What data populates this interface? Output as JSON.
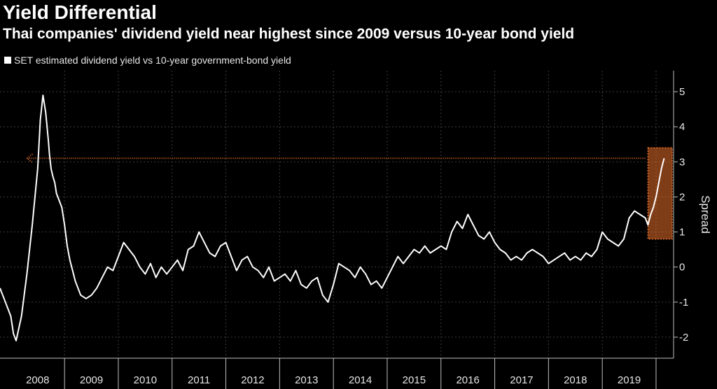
{
  "header": {
    "title": "Yield Differential",
    "subtitle": "Thai companies' dividend yield near highest since 2009 versus 10-year bond yield"
  },
  "chart_data": {
    "type": "line",
    "ylabel": "Spread",
    "ylim": [
      -2.6,
      5.6
    ],
    "xlim": [
      2007.8,
      2020.3
    ],
    "yticks": [
      -2,
      -1,
      0,
      1,
      2,
      3,
      4,
      5
    ],
    "ytick_labels": [
      "-2",
      "-1",
      "0",
      "1",
      "2",
      "3",
      "4",
      "5"
    ],
    "xticks": [
      2008,
      2009,
      2010,
      2011,
      2012,
      2013,
      2014,
      2015,
      2016,
      2017,
      2018,
      2019
    ],
    "xtick_labels": [
      "2008",
      "2009",
      "2010",
      "2011",
      "2012",
      "2013",
      "2014",
      "2015",
      "2016",
      "2017",
      "2018",
      "2019"
    ],
    "grid": true,
    "legend_position": "top-left",
    "series": [
      {
        "name": "SET estimated dividend yield vs 10-year government-bond yield",
        "color": "#ffffff",
        "x": [
          2007.8,
          2007.9,
          2008.0,
          2008.05,
          2008.1,
          2008.2,
          2008.3,
          2008.4,
          2008.5,
          2008.55,
          2008.6,
          2008.65,
          2008.7,
          2008.72,
          2008.75,
          2008.78,
          2008.82,
          2008.85,
          2008.9,
          2008.95,
          2009.0,
          2009.05,
          2009.1,
          2009.15,
          2009.2,
          2009.3,
          2009.4,
          2009.5,
          2009.6,
          2009.7,
          2009.8,
          2009.9,
          2010.0,
          2010.1,
          2010.2,
          2010.3,
          2010.4,
          2010.5,
          2010.6,
          2010.7,
          2010.8,
          2010.9,
          2011.0,
          2011.1,
          2011.2,
          2011.3,
          2011.4,
          2011.5,
          2011.6,
          2011.7,
          2011.8,
          2011.9,
          2012.0,
          2012.1,
          2012.2,
          2012.3,
          2012.4,
          2012.5,
          2012.6,
          2012.7,
          2012.8,
          2012.9,
          2013.0,
          2013.1,
          2013.2,
          2013.3,
          2013.4,
          2013.5,
          2013.6,
          2013.7,
          2013.8,
          2013.9,
          2014.0,
          2014.1,
          2014.2,
          2014.3,
          2014.4,
          2014.5,
          2014.6,
          2014.7,
          2014.8,
          2014.9,
          2015.0,
          2015.1,
          2015.2,
          2015.3,
          2015.4,
          2015.5,
          2015.6,
          2015.7,
          2015.8,
          2015.9,
          2016.0,
          2016.1,
          2016.2,
          2016.3,
          2016.4,
          2016.5,
          2016.6,
          2016.7,
          2016.8,
          2016.9,
          2017.0,
          2017.1,
          2017.2,
          2017.3,
          2017.4,
          2017.5,
          2017.6,
          2017.7,
          2017.8,
          2017.9,
          2018.0,
          2018.1,
          2018.2,
          2018.3,
          2018.4,
          2018.5,
          2018.6,
          2018.7,
          2018.8,
          2018.9,
          2019.0,
          2019.1,
          2019.2,
          2019.3,
          2019.4,
          2019.5,
          2019.6,
          2019.7,
          2019.8,
          2019.85,
          2019.9,
          2019.95,
          2020.0,
          2020.05,
          2020.1,
          2020.15
        ],
        "values": [
          -0.6,
          -1.0,
          -1.4,
          -1.9,
          -2.1,
          -1.4,
          -0.2,
          1.2,
          2.8,
          4.2,
          4.9,
          4.4,
          3.6,
          3.2,
          2.8,
          2.6,
          2.4,
          2.1,
          1.9,
          1.7,
          1.2,
          0.6,
          0.2,
          -0.1,
          -0.4,
          -0.8,
          -0.9,
          -0.8,
          -0.6,
          -0.3,
          0.0,
          -0.1,
          0.3,
          0.7,
          0.5,
          0.3,
          0.0,
          -0.2,
          0.1,
          -0.3,
          0.0,
          -0.2,
          0.0,
          0.2,
          -0.1,
          0.5,
          0.6,
          1.0,
          0.7,
          0.4,
          0.3,
          0.6,
          0.7,
          0.3,
          -0.1,
          0.2,
          0.3,
          0.0,
          -0.1,
          -0.3,
          0.0,
          -0.4,
          -0.3,
          -0.2,
          -0.4,
          -0.1,
          -0.5,
          -0.6,
          -0.4,
          -0.3,
          -0.8,
          -1.0,
          -0.5,
          0.1,
          0.0,
          -0.1,
          -0.3,
          0.0,
          -0.2,
          -0.5,
          -0.4,
          -0.6,
          -0.3,
          0.0,
          0.3,
          0.1,
          0.3,
          0.5,
          0.4,
          0.6,
          0.4,
          0.5,
          0.6,
          0.5,
          1.0,
          1.3,
          1.1,
          1.5,
          1.2,
          0.9,
          0.8,
          1.0,
          0.7,
          0.5,
          0.4,
          0.2,
          0.3,
          0.2,
          0.4,
          0.5,
          0.4,
          0.3,
          0.1,
          0.2,
          0.3,
          0.4,
          0.2,
          0.3,
          0.2,
          0.4,
          0.3,
          0.5,
          1.0,
          0.8,
          0.7,
          0.6,
          0.8,
          1.4,
          1.6,
          1.5,
          1.4,
          1.2,
          1.5,
          1.7,
          2.0,
          2.4,
          2.8,
          3.1
        ]
      }
    ],
    "annotations": {
      "highlight_box": {
        "x_range": [
          2019.85,
          2020.3
        ],
        "y_range": [
          0.8,
          3.4
        ],
        "color": "#e8702a"
      },
      "arrow": {
        "y": 3.1,
        "x_from": 2019.8,
        "x_to": 2008.3,
        "color": "#e8702a"
      }
    }
  }
}
